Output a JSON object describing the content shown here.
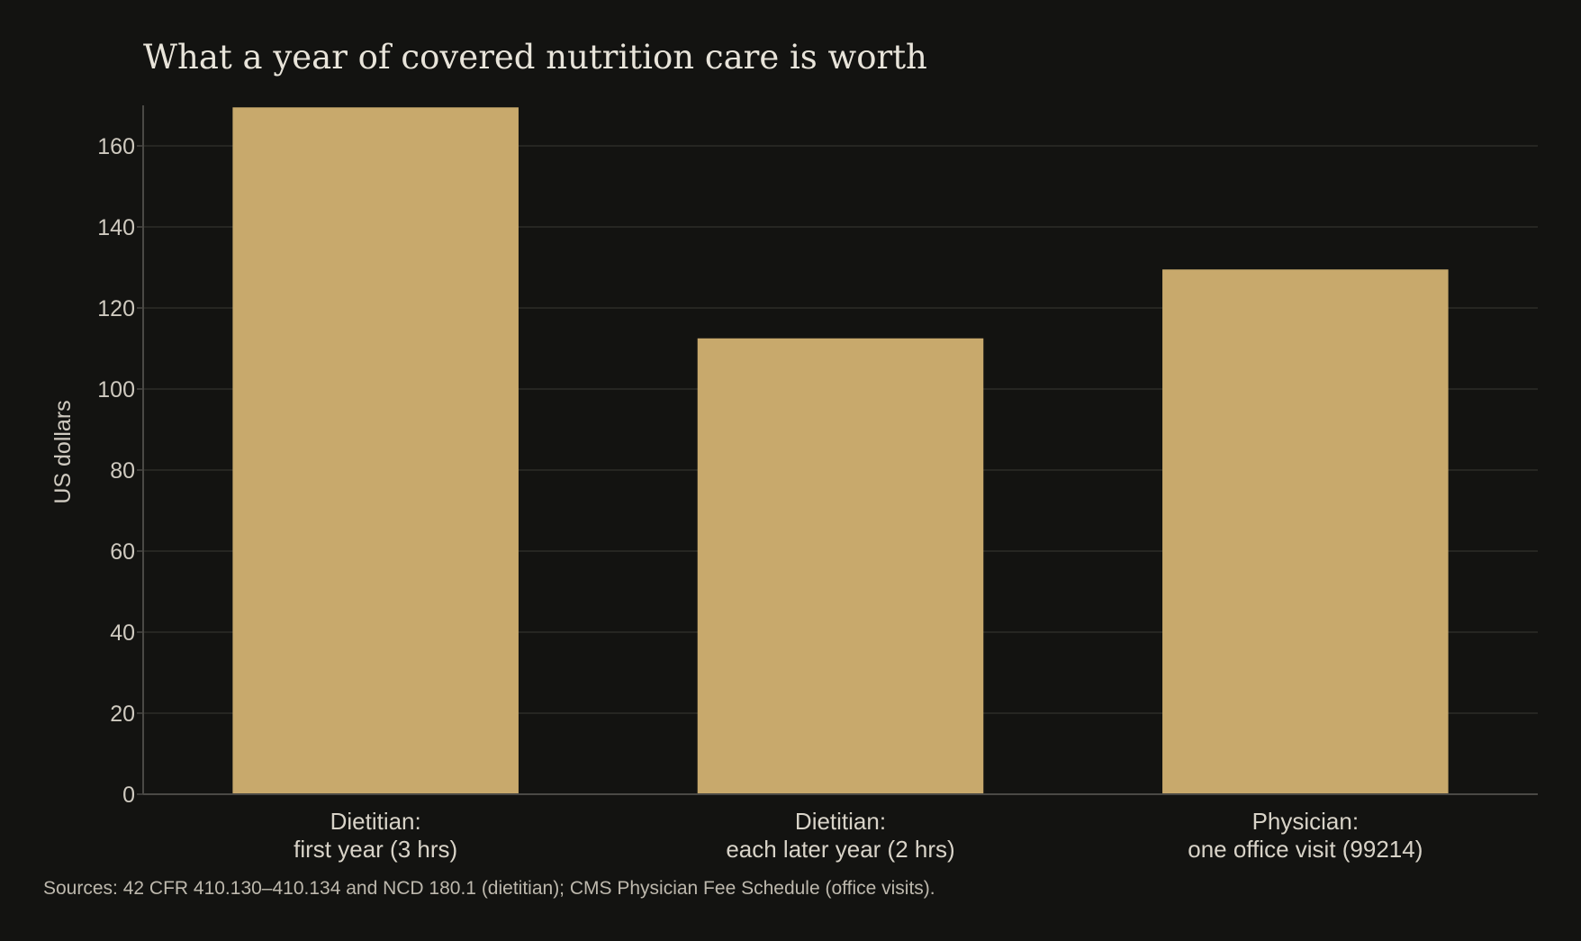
{
  "chart_data": {
    "type": "bar",
    "title": "What a year of covered nutrition care is worth",
    "xlabel": "",
    "ylabel": "US dollars",
    "categories": [
      [
        "Dietitian:",
        "first year (3 hrs)"
      ],
      [
        "Dietitian:",
        "each later year (2 hrs)"
      ],
      [
        "Physician:",
        "one office visit (99214)"
      ]
    ],
    "values": [
      169.5,
      112.5,
      129.5
    ],
    "ylim": [
      0,
      170
    ],
    "yticks": [
      0,
      20,
      40,
      60,
      80,
      100,
      120,
      140,
      160
    ],
    "grid": true,
    "bar_color": "#c8a96c",
    "source": "Sources: 42 CFR 410.130–410.134 and NCD 180.1 (dietitian); CMS Physician Fee Schedule (office visits)."
  }
}
